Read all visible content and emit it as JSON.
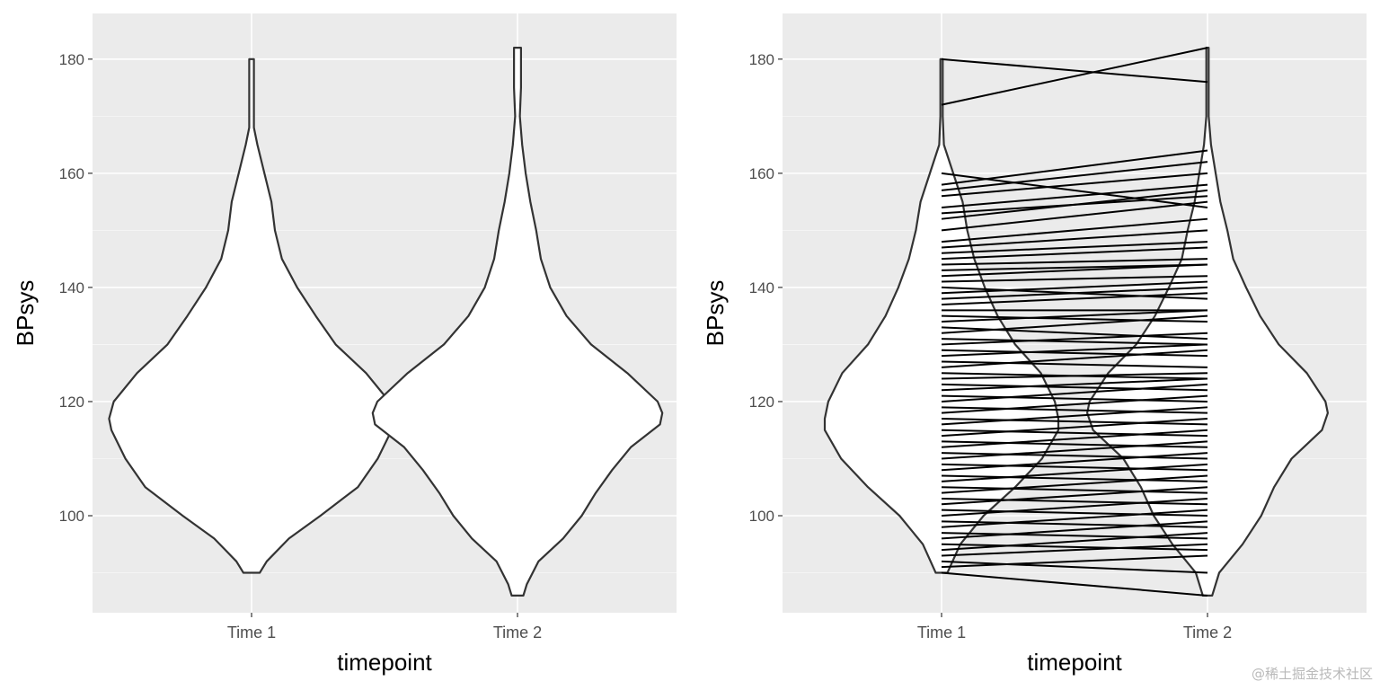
{
  "chart_data": [
    {
      "type": "violin",
      "ylabel": "BPsys",
      "xlabel": "timepoint",
      "categories": [
        "Time 1",
        "Time 2"
      ],
      "ylim": [
        83,
        188
      ],
      "yticks": [
        100,
        120,
        140,
        160,
        180
      ],
      "grid": true,
      "violins": [
        {
          "category": "Time 1",
          "profile": [
            [
              90,
              0.07
            ],
            [
              92,
              0.13
            ],
            [
              96,
              0.32
            ],
            [
              100,
              0.59
            ],
            [
              105,
              0.91
            ],
            [
              110,
              1.08
            ],
            [
              115,
              1.2
            ],
            [
              117,
              1.22
            ],
            [
              120,
              1.18
            ],
            [
              125,
              0.98
            ],
            [
              130,
              0.72
            ],
            [
              135,
              0.55
            ],
            [
              140,
              0.39
            ],
            [
              145,
              0.26
            ],
            [
              150,
              0.2
            ],
            [
              155,
              0.17
            ],
            [
              160,
              0.11
            ],
            [
              165,
              0.05
            ],
            [
              168,
              0.02
            ],
            [
              175,
              0.02
            ],
            [
              180,
              0.02
            ]
          ]
        },
        {
          "category": "Time 2",
          "profile": [
            [
              86,
              0.05
            ],
            [
              88,
              0.08
            ],
            [
              92,
              0.18
            ],
            [
              96,
              0.39
            ],
            [
              100,
              0.55
            ],
            [
              104,
              0.67
            ],
            [
              108,
              0.81
            ],
            [
              112,
              0.97
            ],
            [
              116,
              1.22
            ],
            [
              118,
              1.24
            ],
            [
              120,
              1.2
            ],
            [
              125,
              0.94
            ],
            [
              130,
              0.63
            ],
            [
              135,
              0.42
            ],
            [
              140,
              0.28
            ],
            [
              145,
              0.2
            ],
            [
              150,
              0.16
            ],
            [
              155,
              0.11
            ],
            [
              160,
              0.07
            ],
            [
              165,
              0.04
            ],
            [
              170,
              0.02
            ],
            [
              175,
              0.03
            ],
            [
              182,
              0.03
            ]
          ]
        }
      ]
    },
    {
      "type": "violin+paired-lines",
      "ylabel": "BPsys",
      "xlabel": "timepoint",
      "categories": [
        "Time 1",
        "Time 2"
      ],
      "ylim": [
        83,
        188
      ],
      "yticks": [
        100,
        120,
        140,
        160,
        180
      ],
      "grid": true,
      "violins": [
        {
          "category": "Time 1",
          "profile": [
            [
              90,
              0.05
            ],
            [
              95,
              0.16
            ],
            [
              100,
              0.36
            ],
            [
              105,
              0.63
            ],
            [
              110,
              0.86
            ],
            [
              115,
              1.0
            ],
            [
              117,
              1.0
            ],
            [
              120,
              0.97
            ],
            [
              125,
              0.85
            ],
            [
              130,
              0.63
            ],
            [
              135,
              0.48
            ],
            [
              140,
              0.37
            ],
            [
              145,
              0.28
            ],
            [
              150,
              0.22
            ],
            [
              155,
              0.18
            ],
            [
              160,
              0.1
            ],
            [
              165,
              0.02
            ],
            [
              170,
              0.01
            ],
            [
              180,
              0.01
            ]
          ]
        },
        {
          "category": "Time 2",
          "profile": [
            [
              86,
              0.04
            ],
            [
              90,
              0.1
            ],
            [
              95,
              0.3
            ],
            [
              100,
              0.46
            ],
            [
              105,
              0.57
            ],
            [
              110,
              0.72
            ],
            [
              115,
              0.98
            ],
            [
              118,
              1.03
            ],
            [
              120,
              1.01
            ],
            [
              125,
              0.85
            ],
            [
              130,
              0.61
            ],
            [
              135,
              0.45
            ],
            [
              140,
              0.33
            ],
            [
              145,
              0.22
            ],
            [
              150,
              0.17
            ],
            [
              155,
              0.11
            ],
            [
              160,
              0.07
            ],
            [
              165,
              0.03
            ],
            [
              170,
              0.01
            ],
            [
              182,
              0.01
            ]
          ]
        }
      ],
      "paired_lines": [
        [
          180,
          176
        ],
        [
          172,
          182
        ],
        [
          160,
          154
        ],
        [
          158,
          164
        ],
        [
          157,
          162
        ],
        [
          156,
          160
        ],
        [
          154,
          158
        ],
        [
          153,
          156
        ],
        [
          152,
          157
        ],
        [
          150,
          155
        ],
        [
          148,
          152
        ],
        [
          147,
          150
        ],
        [
          146,
          148
        ],
        [
          145,
          147
        ],
        [
          144,
          145
        ],
        [
          143,
          144
        ],
        [
          142,
          144
        ],
        [
          141,
          142
        ],
        [
          140,
          138
        ],
        [
          139,
          141
        ],
        [
          138,
          140
        ],
        [
          137,
          139
        ],
        [
          136,
          136
        ],
        [
          135,
          134
        ],
        [
          134,
          136
        ],
        [
          133,
          131
        ],
        [
          132,
          135
        ],
        [
          131,
          130
        ],
        [
          130,
          132
        ],
        [
          129,
          128
        ],
        [
          128,
          130
        ],
        [
          127,
          126
        ],
        [
          126,
          129
        ],
        [
          125,
          124
        ],
        [
          124,
          125
        ],
        [
          123,
          122
        ],
        [
          122,
          124
        ],
        [
          121,
          120
        ],
        [
          120,
          123
        ],
        [
          119,
          118
        ],
        [
          118,
          121
        ],
        [
          117,
          116
        ],
        [
          116,
          119
        ],
        [
          115,
          114
        ],
        [
          114,
          117
        ],
        [
          113,
          112
        ],
        [
          112,
          115
        ],
        [
          111,
          110
        ],
        [
          110,
          113
        ],
        [
          109,
          108
        ],
        [
          108,
          111
        ],
        [
          107,
          106
        ],
        [
          106,
          109
        ],
        [
          105,
          104
        ],
        [
          104,
          107
        ],
        [
          103,
          102
        ],
        [
          102,
          105
        ],
        [
          101,
          100
        ],
        [
          100,
          103
        ],
        [
          99,
          98
        ],
        [
          98,
          101
        ],
        [
          97,
          96
        ],
        [
          96,
          99
        ],
        [
          95,
          94
        ],
        [
          94,
          97
        ],
        [
          93,
          95
        ],
        [
          92,
          90
        ],
        [
          91,
          93
        ],
        [
          90,
          86
        ]
      ]
    }
  ],
  "watermark": "@稀土掘金技术社区"
}
